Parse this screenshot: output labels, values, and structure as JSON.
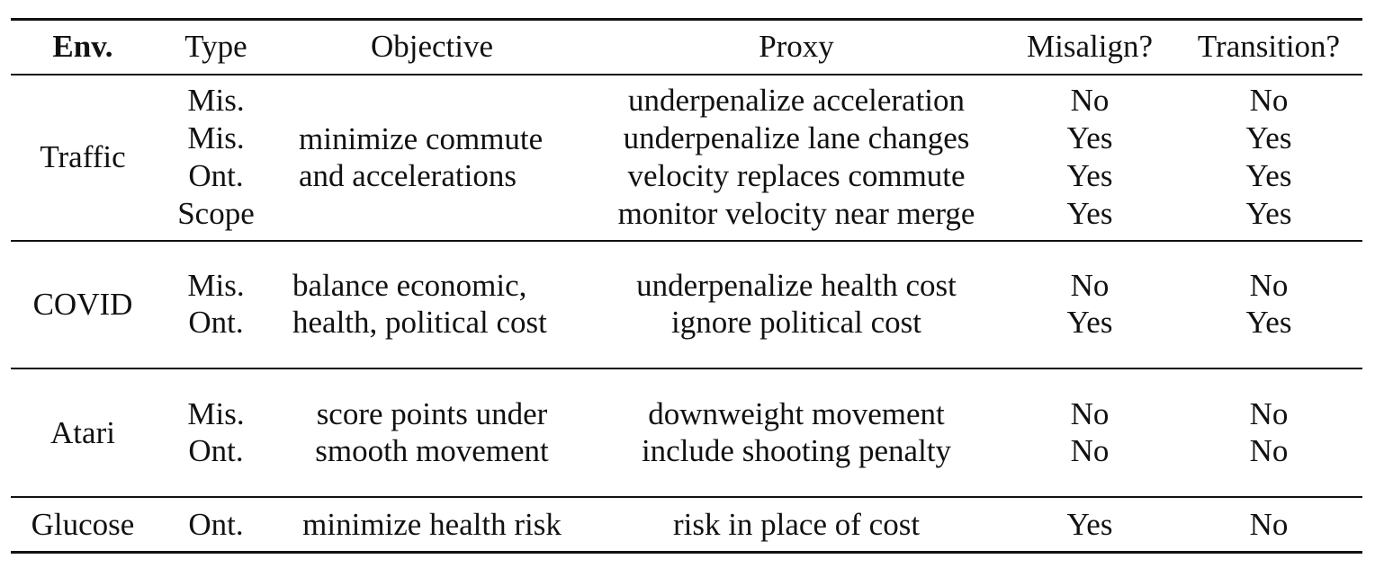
{
  "table": {
    "headers": {
      "env": "Env.",
      "type": "Type",
      "objective": "Objective",
      "proxy": "Proxy",
      "misalign": "Misalign?",
      "transition": "Transition?"
    },
    "groups": [
      {
        "env": "Traffic",
        "objective": [
          "minimize commute",
          "and accelerations"
        ],
        "rows": [
          {
            "type": "Mis.",
            "proxy": "underpenalize acceleration",
            "misalign": "No",
            "transition": "No"
          },
          {
            "type": "Mis.",
            "proxy": "underpenalize lane changes",
            "misalign": "Yes",
            "transition": "Yes"
          },
          {
            "type": "Ont.",
            "proxy": "velocity replaces commute",
            "misalign": "Yes",
            "transition": "Yes"
          },
          {
            "type": "Scope",
            "proxy": "monitor velocity near merge",
            "misalign": "Yes",
            "transition": "Yes"
          }
        ]
      },
      {
        "env": "COVID",
        "objective": [
          "balance economic,",
          "health, political cost"
        ],
        "rows": [
          {
            "type": "Mis.",
            "proxy": "underpenalize health cost",
            "misalign": "No",
            "transition": "No"
          },
          {
            "type": "Ont.",
            "proxy": "ignore political cost",
            "misalign": "Yes",
            "transition": "Yes"
          }
        ]
      },
      {
        "env": "Atari",
        "objective": [
          "score points under",
          "smooth movement"
        ],
        "rows": [
          {
            "type": "Mis.",
            "proxy": "downweight movement",
            "misalign": "No",
            "transition": "No"
          },
          {
            "type": "Ont.",
            "proxy": "include shooting penalty",
            "misalign": "No",
            "transition": "No"
          }
        ]
      },
      {
        "env": "Glucose",
        "objective": [
          "minimize health risk"
        ],
        "rows": [
          {
            "type": "Ont.",
            "proxy": "risk in place of cost",
            "misalign": "Yes",
            "transition": "No"
          }
        ]
      }
    ]
  }
}
